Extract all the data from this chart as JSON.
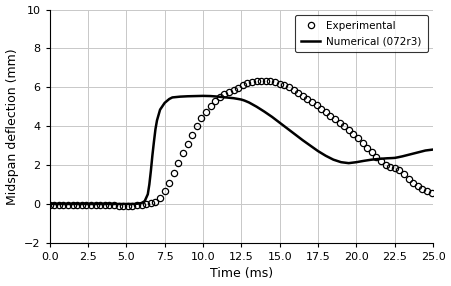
{
  "title": "",
  "xlabel": "Time (ms)",
  "ylabel": "Midspan deflection (mm)",
  "xlim": [
    0.0,
    25.0
  ],
  "ylim": [
    -2,
    10
  ],
  "xticks": [
    0.0,
    2.5,
    5.0,
    7.5,
    10.0,
    12.5,
    15.0,
    17.5,
    20.0,
    22.5,
    25.0
  ],
  "yticks": [
    -2,
    0,
    2,
    4,
    6,
    8,
    10
  ],
  "experimental_x": [
    0.0,
    0.3,
    0.6,
    0.9,
    1.2,
    1.5,
    1.8,
    2.1,
    2.4,
    2.7,
    3.0,
    3.3,
    3.6,
    3.9,
    4.2,
    4.5,
    4.8,
    5.1,
    5.4,
    5.7,
    6.0,
    6.3,
    6.6,
    6.9,
    7.2,
    7.5,
    7.8,
    8.1,
    8.4,
    8.7,
    9.0,
    9.3,
    9.6,
    9.9,
    10.2,
    10.5,
    10.8,
    11.1,
    11.4,
    11.7,
    12.0,
    12.3,
    12.6,
    12.9,
    13.2,
    13.5,
    13.8,
    14.1,
    14.4,
    14.7,
    15.0,
    15.3,
    15.6,
    15.9,
    16.2,
    16.5,
    16.8,
    17.1,
    17.4,
    17.7,
    18.0,
    18.3,
    18.6,
    18.9,
    19.2,
    19.5,
    19.8,
    20.1,
    20.4,
    20.7,
    21.0,
    21.3,
    21.6,
    21.9,
    22.2,
    22.5,
    22.8,
    23.1,
    23.4,
    23.7,
    24.0,
    24.3,
    24.6,
    24.9
  ],
  "experimental_y": [
    -0.05,
    -0.05,
    -0.05,
    -0.05,
    -0.05,
    -0.05,
    -0.05,
    -0.05,
    -0.05,
    -0.04,
    -0.04,
    -0.04,
    -0.04,
    -0.05,
    -0.07,
    -0.1,
    -0.12,
    -0.1,
    -0.08,
    -0.06,
    -0.03,
    0.0,
    0.05,
    0.12,
    0.3,
    0.65,
    1.1,
    1.6,
    2.1,
    2.6,
    3.1,
    3.55,
    4.0,
    4.4,
    4.75,
    5.05,
    5.3,
    5.5,
    5.65,
    5.78,
    5.88,
    5.98,
    6.1,
    6.2,
    6.28,
    6.32,
    6.35,
    6.35,
    6.3,
    6.25,
    6.18,
    6.1,
    6.0,
    5.88,
    5.72,
    5.56,
    5.4,
    5.24,
    5.08,
    4.9,
    4.72,
    4.54,
    4.36,
    4.18,
    4.0,
    3.8,
    3.6,
    3.38,
    3.15,
    2.9,
    2.65,
    2.42,
    2.2,
    2.02,
    1.9,
    1.85,
    1.75,
    1.55,
    1.3,
    1.1,
    0.9,
    0.75,
    0.65,
    0.55
  ],
  "numerical_x": [
    0.0,
    0.5,
    1.0,
    1.5,
    2.0,
    2.5,
    3.0,
    3.5,
    4.0,
    4.5,
    5.0,
    5.5,
    5.8,
    6.0,
    6.2,
    6.4,
    6.5,
    6.6,
    6.7,
    6.8,
    6.9,
    7.0,
    7.2,
    7.5,
    7.8,
    8.0,
    8.5,
    9.0,
    9.5,
    10.0,
    10.5,
    11.0,
    11.5,
    12.0,
    12.3,
    12.5,
    12.7,
    13.0,
    13.5,
    14.0,
    14.5,
    15.0,
    15.5,
    16.0,
    16.5,
    17.0,
    17.5,
    18.0,
    18.5,
    19.0,
    19.5,
    20.0,
    20.5,
    21.0,
    21.5,
    22.0,
    22.3,
    22.5,
    22.7,
    23.0,
    23.5,
    24.0,
    24.5,
    25.0
  ],
  "numerical_y": [
    0.0,
    0.0,
    0.0,
    0.0,
    0.0,
    0.0,
    0.0,
    0.0,
    0.0,
    0.0,
    0.0,
    0.0,
    0.02,
    0.05,
    0.15,
    0.5,
    1.0,
    1.7,
    2.5,
    3.2,
    3.85,
    4.3,
    4.85,
    5.2,
    5.4,
    5.48,
    5.52,
    5.54,
    5.55,
    5.56,
    5.55,
    5.52,
    5.48,
    5.44,
    5.4,
    5.37,
    5.32,
    5.22,
    5.0,
    4.75,
    4.48,
    4.18,
    3.88,
    3.58,
    3.28,
    3.0,
    2.72,
    2.48,
    2.28,
    2.15,
    2.1,
    2.15,
    2.22,
    2.28,
    2.32,
    2.35,
    2.36,
    2.37,
    2.4,
    2.45,
    2.55,
    2.65,
    2.75,
    2.8
  ],
  "exp_color": "black",
  "num_color": "black",
  "exp_marker": "o",
  "exp_markersize": 4.5,
  "num_linewidth": 1.8,
  "legend_exp": "Experimental",
  "legend_num": "Numerical (072r3)",
  "grid_color": "#c8c8c8",
  "bg_color": "white"
}
